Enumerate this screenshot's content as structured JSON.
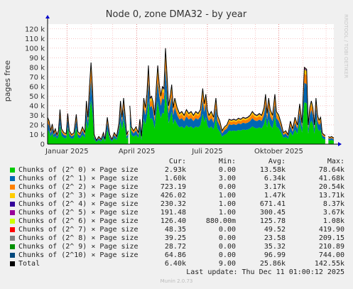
{
  "chart_data": {
    "type": "area",
    "title": "Node 0, zone DMA32 - by year",
    "ylabel": "pages free",
    "watermark": "RRDTOOL / TOBI OETIKER",
    "ylim": [
      0,
      125000
    ],
    "y_ticks": [
      0,
      10000,
      20000,
      30000,
      40000,
      50000,
      60000,
      70000,
      80000,
      90000,
      100000,
      110000,
      120000
    ],
    "y_tick_labels": [
      "0",
      "10 k",
      "20 k",
      "30 k",
      "40 k",
      "50 k",
      "60 k",
      "70 k",
      "80 k",
      "90 k",
      "100 k",
      "110 k",
      "120 k"
    ],
    "x_labels": [
      {
        "label": "Januar 2025",
        "date": "2025-01-01"
      },
      {
        "label": "April 2025",
        "date": "2025-04-01"
      },
      {
        "label": "Juli 2025",
        "date": "2025-07-01"
      },
      {
        "label": "Oktober 2025",
        "date": "2025-10-01"
      }
    ],
    "x_range": [
      "2024-12-07",
      "2025-12-11"
    ],
    "grid": true,
    "gaps": [
      [
        "2025-03-21",
        "2025-03-23"
      ],
      [
        "2025-12-01",
        "2025-12-04"
      ]
    ],
    "columns": [
      "Cur:",
      "Min:",
      "Avg:",
      "Max:"
    ],
    "total_points": [
      [
        "2024-12-07",
        28000
      ],
      [
        "2024-12-09",
        24000
      ],
      [
        "2024-12-11",
        14000
      ],
      [
        "2024-12-13",
        21000
      ],
      [
        "2024-12-15",
        12000
      ],
      [
        "2024-12-17",
        16000
      ],
      [
        "2024-12-19",
        10000
      ],
      [
        "2024-12-21",
        14000
      ],
      [
        "2024-12-23",
        36000
      ],
      [
        "2024-12-25",
        16000
      ],
      [
        "2024-12-28",
        12000
      ],
      [
        "2024-12-31",
        11000
      ],
      [
        "2025-01-02",
        32000
      ],
      [
        "2025-01-04",
        14000
      ],
      [
        "2025-01-07",
        10000
      ],
      [
        "2025-01-10",
        12000
      ],
      [
        "2025-01-13",
        31000
      ],
      [
        "2025-01-15",
        13000
      ],
      [
        "2025-01-18",
        11000
      ],
      [
        "2025-01-21",
        18000
      ],
      [
        "2025-01-24",
        12000
      ],
      [
        "2025-01-26",
        45000
      ],
      [
        "2025-01-28",
        28000
      ],
      [
        "2025-01-30",
        60000
      ],
      [
        "2025-02-01",
        85000
      ],
      [
        "2025-02-03",
        58000
      ],
      [
        "2025-02-05",
        10000
      ],
      [
        "2025-02-08",
        4000
      ],
      [
        "2025-02-11",
        8000
      ],
      [
        "2025-02-14",
        5000
      ],
      [
        "2025-02-17",
        12000
      ],
      [
        "2025-02-19",
        5000
      ],
      [
        "2025-02-22",
        28000
      ],
      [
        "2025-02-25",
        10000
      ],
      [
        "2025-02-28",
        5000
      ],
      [
        "2025-03-03",
        12000
      ],
      [
        "2025-03-06",
        8000
      ],
      [
        "2025-03-09",
        22000
      ],
      [
        "2025-03-11",
        45000
      ],
      [
        "2025-03-13",
        28000
      ],
      [
        "2025-03-15",
        48000
      ],
      [
        "2025-03-17",
        30000
      ],
      [
        "2025-03-19",
        10000
      ],
      [
        "2025-03-21",
        14000
      ],
      [
        "2025-03-23",
        40000
      ],
      [
        "2025-03-25",
        18000
      ],
      [
        "2025-03-28",
        14000
      ],
      [
        "2025-03-31",
        18000
      ],
      [
        "2025-04-03",
        12000
      ],
      [
        "2025-04-05",
        26000
      ],
      [
        "2025-04-07",
        8000
      ],
      [
        "2025-04-10",
        48000
      ],
      [
        "2025-04-12",
        38000
      ],
      [
        "2025-04-14",
        52000
      ],
      [
        "2025-04-16",
        82000
      ],
      [
        "2025-04-18",
        48000
      ],
      [
        "2025-04-20",
        50000
      ],
      [
        "2025-04-22",
        44000
      ],
      [
        "2025-04-24",
        30000
      ],
      [
        "2025-04-26",
        58000
      ],
      [
        "2025-04-28",
        82000
      ],
      [
        "2025-04-30",
        62000
      ],
      [
        "2025-05-02",
        50000
      ],
      [
        "2025-05-04",
        60000
      ],
      [
        "2025-05-06",
        58000
      ],
      [
        "2025-05-08",
        100000
      ],
      [
        "2025-05-10",
        72000
      ],
      [
        "2025-05-12",
        40000
      ],
      [
        "2025-05-14",
        50000
      ],
      [
        "2025-05-16",
        62000
      ],
      [
        "2025-05-18",
        38000
      ],
      [
        "2025-05-20",
        48000
      ],
      [
        "2025-05-23",
        38000
      ],
      [
        "2025-05-26",
        32000
      ],
      [
        "2025-05-29",
        34000
      ],
      [
        "2025-06-01",
        30000
      ],
      [
        "2025-06-04",
        36000
      ],
      [
        "2025-06-07",
        32000
      ],
      [
        "2025-06-10",
        34000
      ],
      [
        "2025-06-13",
        30000
      ],
      [
        "2025-06-16",
        34000
      ],
      [
        "2025-06-19",
        32000
      ],
      [
        "2025-06-22",
        36000
      ],
      [
        "2025-06-25",
        58000
      ],
      [
        "2025-06-27",
        42000
      ],
      [
        "2025-06-29",
        52000
      ],
      [
        "2025-07-01",
        36000
      ],
      [
        "2025-07-03",
        30000
      ],
      [
        "2025-07-06",
        34000
      ],
      [
        "2025-07-09",
        28000
      ],
      [
        "2025-07-12",
        48000
      ],
      [
        "2025-07-14",
        30000
      ],
      [
        "2025-07-17",
        24000
      ],
      [
        "2025-07-20",
        14000
      ],
      [
        "2025-07-23",
        18000
      ],
      [
        "2025-07-26",
        20000
      ],
      [
        "2025-07-29",
        26000
      ],
      [
        "2025-08-01",
        25000
      ],
      [
        "2025-08-04",
        26000
      ],
      [
        "2025-08-07",
        25000
      ],
      [
        "2025-08-10",
        27000
      ],
      [
        "2025-08-13",
        26000
      ],
      [
        "2025-08-16",
        28000
      ],
      [
        "2025-08-19",
        27000
      ],
      [
        "2025-08-22",
        28000
      ],
      [
        "2025-08-25",
        30000
      ],
      [
        "2025-08-28",
        34000
      ],
      [
        "2025-08-31",
        31000
      ],
      [
        "2025-09-03",
        30000
      ],
      [
        "2025-09-06",
        32000
      ],
      [
        "2025-09-09",
        30000
      ],
      [
        "2025-09-12",
        38000
      ],
      [
        "2025-09-14",
        52000
      ],
      [
        "2025-09-16",
        32000
      ],
      [
        "2025-09-18",
        48000
      ],
      [
        "2025-09-20",
        36000
      ],
      [
        "2025-09-23",
        30000
      ],
      [
        "2025-09-26",
        52000
      ],
      [
        "2025-09-28",
        34000
      ],
      [
        "2025-10-01",
        30000
      ],
      [
        "2025-10-04",
        22000
      ],
      [
        "2025-10-07",
        12000
      ],
      [
        "2025-10-10",
        14000
      ],
      [
        "2025-10-13",
        10000
      ],
      [
        "2025-10-16",
        24000
      ],
      [
        "2025-10-19",
        16000
      ],
      [
        "2025-10-22",
        28000
      ],
      [
        "2025-10-25",
        20000
      ],
      [
        "2025-10-28",
        42000
      ],
      [
        "2025-10-31",
        22000
      ],
      [
        "2025-11-03",
        80000
      ],
      [
        "2025-11-06",
        78000
      ],
      [
        "2025-11-08",
        20000
      ],
      [
        "2025-11-10",
        38000
      ],
      [
        "2025-11-12",
        45000
      ],
      [
        "2025-11-14",
        38000
      ],
      [
        "2025-11-16",
        20000
      ],
      [
        "2025-11-18",
        48000
      ],
      [
        "2025-11-20",
        30000
      ],
      [
        "2025-11-22",
        25000
      ],
      [
        "2025-11-24",
        28000
      ],
      [
        "2025-11-26",
        12000
      ],
      [
        "2025-11-28",
        10000
      ],
      [
        "2025-11-30",
        9000
      ],
      [
        "2025-12-04",
        8000
      ],
      [
        "2025-12-06",
        7000
      ],
      [
        "2025-12-08",
        8000
      ],
      [
        "2025-12-11",
        6400
      ]
    ],
    "series": [
      {
        "name": "Chunks of (2^ 0) × Page size",
        "color": "#00cc00",
        "cur": "2.93k",
        "min": "0.00",
        "avg": "13.58k",
        "max": "78.64k",
        "share": 0.545
      },
      {
        "name": "Chunks of (2^ 1) × Page size",
        "color": "#0066b3",
        "cur": "1.60k",
        "min": "3.00",
        "avg": "6.34k",
        "max": "41.68k",
        "share": 0.255
      },
      {
        "name": "Chunks of (2^ 2) × Page size",
        "color": "#ff8000",
        "cur": "723.19",
        "min": "0.00",
        "avg": "3.17k",
        "max": "20.54k",
        "share": 0.12
      },
      {
        "name": "Chunks of (2^ 3) × Page size",
        "color": "#ffcc00",
        "cur": "426.02",
        "min": "1.00",
        "avg": "1.47k",
        "max": "13.71k",
        "share": 0.055
      },
      {
        "name": "Chunks of (2^ 4) × Page size",
        "color": "#330099",
        "cur": "230.32",
        "min": "1.00",
        "avg": "671.41",
        "max": "8.37k",
        "share": 0.01
      },
      {
        "name": "Chunks of (2^ 5) × Page size",
        "color": "#990099",
        "cur": "191.48",
        "min": "1.00",
        "avg": "300.45",
        "max": "3.67k",
        "share": 0.005
      },
      {
        "name": "Chunks of (2^ 6) × Page size",
        "color": "#ccff00",
        "cur": "126.40",
        "min": "880.00m",
        "avg": "125.78",
        "max": "1.08k",
        "share": 0.003
      },
      {
        "name": "Chunks of (2^ 7) × Page size",
        "color": "#ff0000",
        "cur": "48.35",
        "min": "0.00",
        "avg": "49.52",
        "max": "419.90",
        "share": 0.002
      },
      {
        "name": "Chunks of (2^ 8) × Page size",
        "color": "#808080",
        "cur": "39.25",
        "min": "0.00",
        "avg": "23.58",
        "max": "209.15",
        "share": 0.001
      },
      {
        "name": "Chunks of (2^ 9) × Page size",
        "color": "#008f00",
        "cur": "28.72",
        "min": "0.00",
        "avg": "35.32",
        "max": "210.89",
        "share": 0.002
      },
      {
        "name": "Chunks of (2^10) × Page size",
        "color": "#00487d",
        "cur": "64.86",
        "min": "0.00",
        "avg": "96.99",
        "max": "744.00",
        "share": 0.002
      }
    ],
    "total": {
      "name": "Total",
      "color": "#000000",
      "cur": "6.40k",
      "min": "9.00",
      "avg": "25.86k",
      "max": "142.55k"
    }
  },
  "footer": {
    "last_update": "Last update: Thu Dec 11 01:00:12 2025",
    "munin_version": "Munin 2.0.73"
  }
}
